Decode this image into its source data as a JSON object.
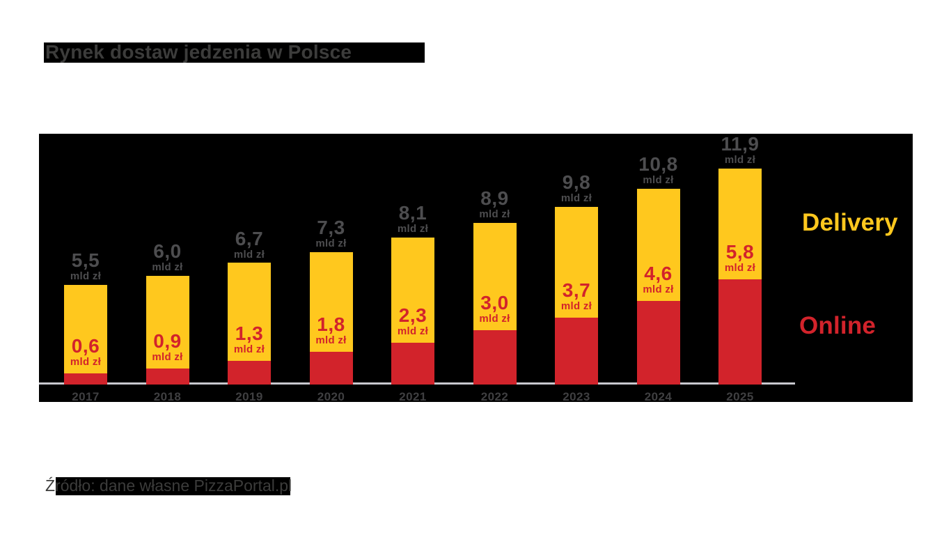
{
  "page": {
    "title": "Rynek dostaw jedzenia w Polsce",
    "source_note": "Źródło: dane własne PizzaPortal.pl"
  },
  "legend": {
    "delivery_label": "Delivery",
    "online_label": "Online"
  },
  "colors": {
    "delivery_yellow": "#ffc81e",
    "online_red": "#d2232b",
    "total_label_gray": "#4d4d4f",
    "year_label_gray": "#3f3f41",
    "title_gray": "#3c3c3b",
    "axis_line_gray": "#c8c8ce",
    "chart_background": "#000000",
    "page_background": "#ffffff"
  },
  "chart_data": {
    "type": "bar",
    "stacked": true,
    "title": "Rynek dostaw jedzenia w Polsce",
    "categories": [
      "2017",
      "2018",
      "2019",
      "2020",
      "2021",
      "2022",
      "2023",
      "2024",
      "2025"
    ],
    "series": [
      {
        "name": "Online",
        "color": "#d2232b",
        "values": [
          0.6,
          0.9,
          1.3,
          1.8,
          2.3,
          3.0,
          3.7,
          4.6,
          5.8
        ]
      },
      {
        "name": "Delivery",
        "color": "#ffc81e",
        "values": [
          4.9,
          5.1,
          5.4,
          5.5,
          5.8,
          5.9,
          6.1,
          6.2,
          6.1
        ]
      }
    ],
    "totals": [
      5.5,
      6.0,
      6.7,
      7.3,
      8.1,
      8.9,
      9.8,
      10.8,
      11.9
    ],
    "unit": "mld zł",
    "value_format": "comma-decimal-1",
    "xlabel": "",
    "ylabel": "",
    "ylim": [
      0,
      13
    ],
    "grid": false,
    "legend_position": "right",
    "bar_value_labels": "total above bar (gray), online segment value inside bar (red)"
  }
}
